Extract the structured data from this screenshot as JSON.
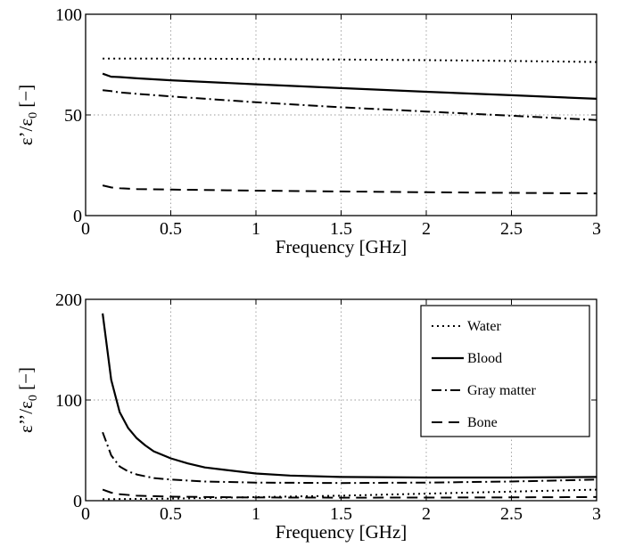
{
  "chart_data": [
    {
      "type": "line",
      "xlabel": "Frequency [GHz]",
      "ylabel_main": "ε’/ε",
      "ylabel_sub": "0",
      "ylabel_tail": " [−]",
      "xlim": [
        0,
        3
      ],
      "ylim": [
        0,
        100
      ],
      "xticks": [
        0,
        0.5,
        1,
        1.5,
        2,
        2.5,
        3
      ],
      "xtick_labels": [
        "0",
        "0.5",
        "1",
        "1.5",
        "2",
        "2.5",
        "3"
      ],
      "yticks": [
        0,
        50,
        100
      ],
      "ytick_labels": [
        "0",
        "50",
        "100"
      ],
      "grid": true,
      "series": [
        {
          "name": "Water",
          "style": "dotted",
          "x": [
            0.1,
            0.5,
            1,
            1.5,
            2,
            2.5,
            3
          ],
          "y": [
            78,
            78,
            77.8,
            77.5,
            77.2,
            76.8,
            76.3
          ]
        },
        {
          "name": "Blood",
          "style": "solid",
          "x": [
            0.1,
            0.15,
            0.2,
            0.3,
            0.5,
            1,
            1.5,
            2,
            2.5,
            3
          ],
          "y": [
            70.5,
            69,
            68.8,
            68.2,
            67.2,
            65.2,
            63.3,
            61.5,
            59.8,
            58
          ]
        },
        {
          "name": "Gray matter",
          "style": "dashdot",
          "x": [
            0.1,
            0.15,
            0.2,
            0.3,
            0.5,
            1,
            1.5,
            2,
            2.5,
            3
          ],
          "y": [
            62.3,
            61.8,
            61.2,
            60.5,
            59.2,
            56.3,
            53.8,
            51.7,
            49.6,
            47.5
          ]
        },
        {
          "name": "Bone",
          "style": "dashed",
          "x": [
            0.1,
            0.15,
            0.2,
            0.3,
            0.5,
            1,
            1.5,
            2,
            2.5,
            3
          ],
          "y": [
            15,
            14,
            13.6,
            13.2,
            12.9,
            12.4,
            12,
            11.6,
            11.3,
            11
          ]
        }
      ]
    },
    {
      "type": "line",
      "xlabel": "Frequency [GHz]",
      "ylabel_main": "ε’’/ε",
      "ylabel_sub": "0",
      "ylabel_tail": " [−]",
      "xlim": [
        0,
        3
      ],
      "ylim": [
        0,
        200
      ],
      "xticks": [
        0,
        0.5,
        1,
        1.5,
        2,
        2.5,
        3
      ],
      "xtick_labels": [
        "0",
        "0.5",
        "1",
        "1.5",
        "2",
        "2.5",
        "3"
      ],
      "yticks": [
        0,
        100,
        200
      ],
      "ytick_labels": [
        "0",
        "100",
        "200"
      ],
      "grid": true,
      "legend": "top-right",
      "series": [
        {
          "name": "Water",
          "style": "dotted",
          "x": [
            0.1,
            0.5,
            1,
            1.5,
            2,
            2.5,
            3
          ],
          "y": [
            1.5,
            2,
            3.5,
            5,
            7,
            9,
            11
          ]
        },
        {
          "name": "Blood",
          "style": "solid",
          "x": [
            0.1,
            0.15,
            0.2,
            0.25,
            0.3,
            0.35,
            0.4,
            0.5,
            0.6,
            0.7,
            0.8,
            1,
            1.2,
            1.5,
            2,
            2.5,
            3
          ],
          "y": [
            186,
            120,
            88,
            72,
            62,
            55,
            49,
            42,
            37,
            33,
            31,
            27,
            25,
            23.5,
            23,
            23,
            23.5
          ]
        },
        {
          "name": "Gray matter",
          "style": "dashdot",
          "x": [
            0.1,
            0.15,
            0.2,
            0.25,
            0.3,
            0.4,
            0.5,
            0.7,
            1,
            1.5,
            2,
            2.5,
            3
          ],
          "y": [
            68,
            45,
            34,
            29,
            26,
            22.5,
            21,
            19,
            18,
            17.5,
            18,
            19,
            21
          ]
        },
        {
          "name": "Bone",
          "style": "dashed",
          "x": [
            0.1,
            0.15,
            0.2,
            0.3,
            0.5,
            1,
            1.5,
            2,
            2.5,
            3
          ],
          "y": [
            11,
            8,
            6.5,
            5,
            4,
            3.2,
            3,
            3.1,
            3.3,
            3.6
          ]
        }
      ]
    }
  ]
}
